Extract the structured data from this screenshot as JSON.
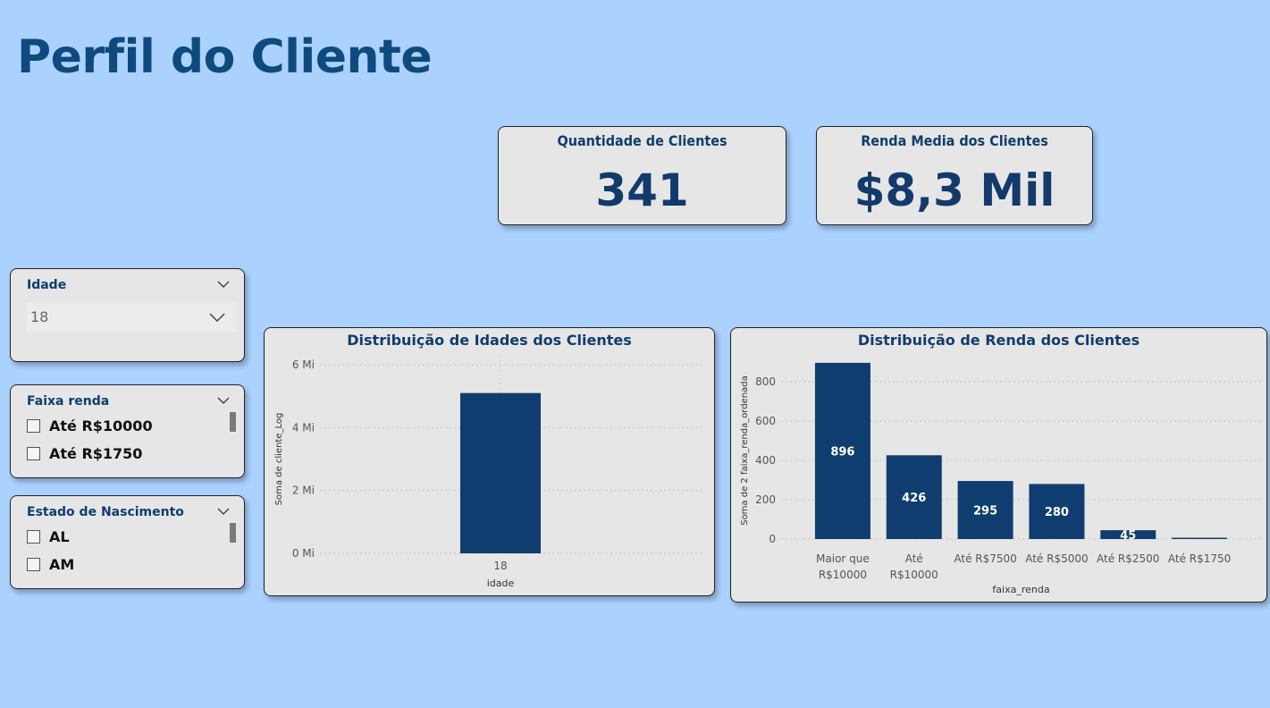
{
  "page": {
    "title": "Perfil do Cliente"
  },
  "kpis": {
    "clientes": {
      "label": "Quantidade de Clientes",
      "value": "341"
    },
    "renda": {
      "label": "Renda Media dos Clientes",
      "value": "$8,3 Mil"
    }
  },
  "slicers": {
    "idade": {
      "title": "Idade",
      "selected": "18"
    },
    "faixa_renda": {
      "title": "Faixa renda",
      "options": [
        "Até R$10000",
        "Até R$1750"
      ]
    },
    "estado": {
      "title": "Estado de Nascimento",
      "options": [
        "AL",
        "AM"
      ]
    }
  },
  "colors": {
    "bar": "#103d6f",
    "background": "#abd1ff",
    "card": "#e6e6e6"
  },
  "chart_data": [
    {
      "type": "bar",
      "title": "Distribuição de Idades dos Clientes",
      "xlabel": "idade",
      "ylabel": "Soma de cliente_Log",
      "categories": [
        "18"
      ],
      "values": [
        5.1
      ],
      "ylim": [
        0,
        6
      ],
      "yticks": [
        0,
        2,
        4,
        6
      ],
      "ytick_labels": [
        "0 Mi",
        "2 Mi",
        "4 Mi",
        "6 Mi"
      ],
      "grid": true
    },
    {
      "type": "bar",
      "title": "Distribuição de Renda dos Clientes",
      "xlabel": "faixa_renda",
      "ylabel": "Soma de 2 faixa_renda_ordenada",
      "categories": [
        "Maior que R$10000",
        "Até R$10000",
        "Até R$7500",
        "Até R$5000",
        "Até R$2500",
        "Até R$1750"
      ],
      "values": [
        896,
        426,
        295,
        280,
        45,
        5
      ],
      "data_labels": [
        "896",
        "426",
        "295",
        "280",
        "45",
        ""
      ],
      "ylim": [
        0,
        900
      ],
      "yticks": [
        0,
        200,
        400,
        600,
        800
      ],
      "ytick_labels": [
        "0",
        "200",
        "400",
        "600",
        "800"
      ],
      "grid": true
    }
  ]
}
